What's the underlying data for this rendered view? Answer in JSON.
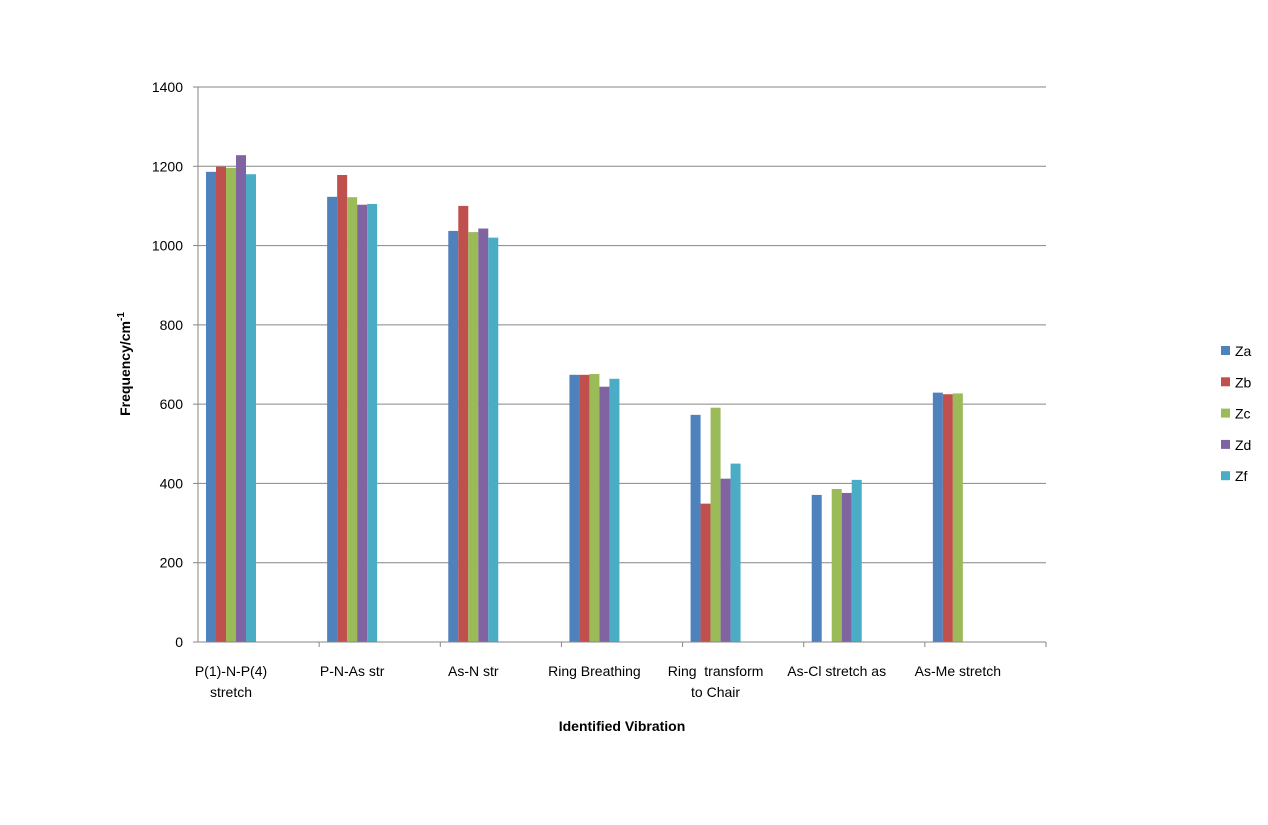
{
  "chart_data": {
    "type": "bar",
    "title": "",
    "xlabel": "Identified Vibration",
    "ylabel": "Frequency/cm",
    "ylabel_superscript": "-1",
    "ylim": [
      0,
      1400
    ],
    "yticks": [
      0,
      200,
      400,
      600,
      800,
      1000,
      1200,
      1400
    ],
    "grid": true,
    "legend_position": "right",
    "categories": [
      [
        "P(1)-N-P(4)",
        "stretch"
      ],
      [
        "P-N-As str"
      ],
      [
        "As-N str"
      ],
      [
        "Ring Breathing"
      ],
      [
        "Ring  transform",
        "to Chair"
      ],
      [
        "As-Cl stretch as"
      ],
      [
        "As-Me stretch"
      ]
    ],
    "series": [
      {
        "name": "Za",
        "color": "#4F81BD",
        "values": [
          1186,
          1123,
          1037,
          674,
          573,
          371,
          629
        ]
      },
      {
        "name": "Zb",
        "color": "#C0504D",
        "values": [
          1199,
          1178,
          1100,
          674,
          349,
          null,
          625
        ]
      },
      {
        "name": "Zc",
        "color": "#9BBB59",
        "values": [
          1196,
          1122,
          1034,
          676,
          591,
          386,
          627
        ]
      },
      {
        "name": "Zd",
        "color": "#8064A2",
        "values": [
          1228,
          1103,
          1043,
          644,
          412,
          376,
          null
        ]
      },
      {
        "name": "Zf",
        "color": "#4BACC6",
        "values": [
          1180,
          1105,
          1020,
          664,
          450,
          409,
          null
        ]
      }
    ]
  }
}
